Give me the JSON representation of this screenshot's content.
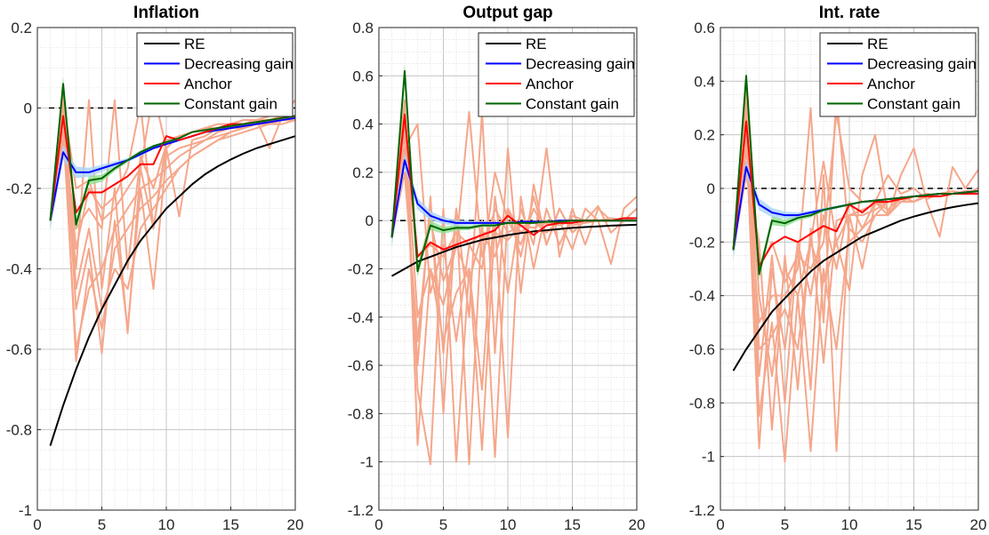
{
  "figure": {
    "colors": {
      "re": "#000000",
      "decreasing_gain": "#0000ff",
      "anchor": "#ff0000",
      "constant_gain": "#006400",
      "simulation_paths": "#f5a78b",
      "decreasing_gain_band": "#a9d4f5",
      "constant_gain_band": "#8fe08f",
      "zero_line": "#000000",
      "grid": "#cfcfcf"
    }
  },
  "chart_data": [
    {
      "type": "line",
      "title": "Inflation",
      "xlabel": "",
      "ylabel": "",
      "xlim": [
        0,
        20
      ],
      "ylim": [
        -1,
        0.2
      ],
      "xticks": [
        0,
        5,
        10,
        15,
        20
      ],
      "yticks": [
        0.2,
        0,
        -0.2,
        -0.4,
        -0.6,
        -0.8,
        -1
      ],
      "ytick_labels": [
        "0.2",
        "0",
        "-0.2",
        "-0.4",
        "-0.6",
        "-0.8",
        "-1"
      ],
      "grid": true,
      "minor_grid": true,
      "zero_line": true,
      "legend": {
        "position": "top-right",
        "entries": [
          "RE",
          "Decreasing gain",
          "Anchor",
          "Constant gain"
        ]
      },
      "x": [
        1,
        2,
        3,
        4,
        5,
        6,
        7,
        8,
        9,
        10,
        11,
        12,
        13,
        14,
        15,
        16,
        17,
        18,
        19,
        20
      ],
      "series": [
        {
          "name": "RE",
          "values": [
            -0.84,
            -0.74,
            -0.65,
            -0.57,
            -0.5,
            -0.44,
            -0.38,
            -0.33,
            -0.29,
            -0.25,
            -0.22,
            -0.19,
            -0.165,
            -0.145,
            -0.128,
            -0.113,
            -0.1,
            -0.09,
            -0.08,
            -0.07
          ]
        },
        {
          "name": "Decreasing gain",
          "values": [
            -0.28,
            -0.11,
            -0.16,
            -0.16,
            -0.15,
            -0.14,
            -0.13,
            -0.115,
            -0.1,
            -0.09,
            -0.08,
            -0.07,
            -0.06,
            -0.055,
            -0.05,
            -0.045,
            -0.04,
            -0.035,
            -0.03,
            -0.025
          ]
        },
        {
          "name": "Anchor",
          "values": [
            -0.28,
            -0.02,
            -0.26,
            -0.21,
            -0.21,
            -0.19,
            -0.17,
            -0.14,
            -0.14,
            -0.07,
            -0.08,
            -0.07,
            -0.06,
            -0.05,
            -0.04,
            -0.04,
            -0.035,
            -0.03,
            -0.025,
            -0.02
          ]
        },
        {
          "name": "Constant gain",
          "values": [
            -0.28,
            0.06,
            -0.29,
            -0.18,
            -0.175,
            -0.15,
            -0.13,
            -0.11,
            -0.095,
            -0.085,
            -0.075,
            -0.06,
            -0.055,
            -0.05,
            -0.045,
            -0.04,
            -0.035,
            -0.03,
            -0.025,
            -0.02
          ]
        }
      ],
      "simulation_paths": [
        [
          -0.28,
          -0.05,
          -0.6,
          -0.45,
          -0.4,
          -0.3,
          -0.25,
          -0.2,
          -0.18,
          -0.15,
          -0.12,
          -0.1,
          -0.08,
          -0.07,
          -0.06,
          -0.05,
          -0.04,
          -0.04,
          -0.03,
          -0.03
        ],
        [
          -0.28,
          -0.02,
          -0.63,
          -0.4,
          -0.55,
          -0.35,
          -0.3,
          -0.25,
          -0.22,
          -0.18,
          -0.15,
          -0.12,
          -0.1,
          -0.08,
          -0.07,
          -0.06,
          -0.05,
          -0.04,
          -0.04,
          -0.03
        ],
        [
          -0.28,
          0.0,
          -0.5,
          -0.35,
          -0.61,
          -0.28,
          -0.55,
          -0.2,
          -0.45,
          -0.12,
          -0.1,
          -0.09,
          -0.08,
          -0.06,
          -0.05,
          -0.05,
          -0.04,
          -0.03,
          -0.03,
          -0.02
        ],
        [
          -0.28,
          0.04,
          -0.45,
          -0.3,
          -0.5,
          -0.4,
          -0.45,
          -0.3,
          -0.25,
          -0.2,
          -0.15,
          -0.12,
          -0.1,
          -0.08,
          -0.06,
          -0.05,
          -0.04,
          -0.04,
          -0.03,
          -0.03
        ],
        [
          -0.28,
          -0.05,
          -0.4,
          0.02,
          -0.45,
          -0.2,
          -0.56,
          -0.15,
          -0.3,
          -0.1,
          -0.27,
          -0.08,
          -0.07,
          -0.05,
          -0.05,
          -0.04,
          -0.03,
          -0.03,
          -0.02,
          -0.02
        ],
        [
          -0.28,
          -0.08,
          -0.3,
          -0.25,
          -0.3,
          0.02,
          -0.4,
          -0.12,
          -0.2,
          -0.09,
          -0.08,
          -0.07,
          -0.06,
          -0.05,
          -0.04,
          -0.03,
          -0.03,
          -0.02,
          -0.02,
          -0.02
        ],
        [
          -0.28,
          -0.02,
          -0.35,
          -0.2,
          -0.25,
          -0.22,
          -0.15,
          0.01,
          -0.3,
          -0.08,
          -0.07,
          -0.06,
          -0.05,
          -0.05,
          -0.04,
          -0.04,
          -0.03,
          -0.1,
          -0.02,
          0.02
        ],
        [
          -0.28,
          0.02,
          -0.2,
          -0.18,
          -0.28,
          -0.25,
          -0.2,
          -0.15,
          0.04,
          -0.1,
          -0.07,
          -0.06,
          -0.05,
          -0.04,
          -0.04,
          -0.03,
          -0.03,
          -0.02,
          -0.02,
          -0.02
        ]
      ]
    },
    {
      "type": "line",
      "title": "Output gap",
      "xlabel": "",
      "ylabel": "",
      "xlim": [
        0,
        20
      ],
      "ylim": [
        -1.2,
        0.8
      ],
      "xticks": [
        0,
        5,
        10,
        15,
        20
      ],
      "yticks": [
        0.8,
        0.6,
        0.4,
        0.2,
        0,
        -0.2,
        -0.4,
        -0.6,
        -0.8,
        -1,
        -1.2
      ],
      "ytick_labels": [
        "0.8",
        "0.6",
        "0.4",
        "0.2",
        "0",
        "-0.2",
        "-0.4",
        "-0.6",
        "-0.8",
        "-1",
        "-1.2"
      ],
      "grid": true,
      "minor_grid": true,
      "zero_line": true,
      "legend": {
        "position": "top-right",
        "entries": [
          "RE",
          "Decreasing gain",
          "Anchor",
          "Constant gain"
        ]
      },
      "x": [
        1,
        2,
        3,
        4,
        5,
        6,
        7,
        8,
        9,
        10,
        11,
        12,
        13,
        14,
        15,
        16,
        17,
        18,
        19,
        20
      ],
      "series": [
        {
          "name": "RE",
          "values": [
            -0.23,
            -0.2,
            -0.17,
            -0.15,
            -0.13,
            -0.11,
            -0.095,
            -0.08,
            -0.07,
            -0.06,
            -0.052,
            -0.045,
            -0.04,
            -0.035,
            -0.03,
            -0.027,
            -0.024,
            -0.021,
            -0.019,
            -0.017
          ]
        },
        {
          "name": "Decreasing gain",
          "values": [
            -0.07,
            0.25,
            0.07,
            0.02,
            0.0,
            -0.01,
            -0.01,
            -0.01,
            -0.01,
            -0.01,
            -0.005,
            -0.005,
            -0.005,
            0.0,
            0.0,
            0.0,
            0.0,
            0.0,
            0.0,
            0.0
          ]
        },
        {
          "name": "Anchor",
          "values": [
            -0.07,
            0.44,
            -0.15,
            -0.09,
            -0.12,
            -0.1,
            -0.08,
            -0.06,
            -0.04,
            0.02,
            -0.02,
            -0.06,
            -0.02,
            -0.01,
            -0.01,
            0.0,
            0.0,
            0.0,
            0.01,
            0.01
          ]
        },
        {
          "name": "Constant gain",
          "values": [
            -0.07,
            0.62,
            -0.21,
            -0.02,
            -0.04,
            -0.03,
            -0.03,
            -0.02,
            -0.02,
            -0.01,
            -0.01,
            -0.01,
            -0.005,
            -0.005,
            0.0,
            0.0,
            0.0,
            0.0,
            0.0,
            0.0
          ]
        }
      ],
      "simulation_paths": [
        [
          -0.07,
          0.5,
          -0.93,
          -0.2,
          -0.35,
          -0.1,
          -0.25,
          -0.05,
          -0.15,
          0.05,
          -0.05,
          0.0,
          -0.05,
          0.0,
          -0.02,
          -0.01,
          0.0,
          0.01,
          0.0,
          0.0
        ],
        [
          -0.07,
          0.4,
          -0.7,
          -1.01,
          0.05,
          -1.0,
          -0.2,
          -0.95,
          0.0,
          -0.9,
          0.1,
          -0.2,
          0.05,
          -0.1,
          0.02,
          0.0,
          0.0,
          0.0,
          0.0,
          0.0
        ],
        [
          -0.07,
          0.3,
          -0.6,
          0.1,
          -0.8,
          0.05,
          -1.01,
          0.0,
          -0.98,
          0.05,
          -0.15,
          0.1,
          -0.1,
          0.05,
          -0.05,
          0.0,
          0.0,
          0.0,
          0.0,
          0.0
        ],
        [
          -0.07,
          0.2,
          -0.5,
          0.05,
          -0.55,
          0.05,
          -0.4,
          0.45,
          -0.55,
          0.3,
          -0.3,
          0.15,
          -0.1,
          0.05,
          -0.05,
          0.0,
          0.0,
          0.0,
          0.0,
          0.0
        ],
        [
          -0.07,
          0.4,
          -0.4,
          -0.2,
          -0.5,
          -0.3,
          -0.2,
          -0.7,
          0.1,
          -0.3,
          0.05,
          -0.1,
          0.3,
          -0.15,
          0.05,
          -0.1,
          0.05,
          0.0,
          0.0,
          0.0
        ],
        [
          -0.07,
          0.3,
          0.4,
          -0.3,
          -0.1,
          -0.5,
          -0.1,
          -0.2,
          0.2,
          0.0,
          -0.1,
          0.05,
          -0.05,
          0.0,
          -0.12,
          0.05,
          0.0,
          -0.18,
          0.05,
          0.1
        ],
        [
          -0.07,
          0.45,
          -0.2,
          0.0,
          -0.25,
          -0.1,
          0.45,
          -0.15,
          0.05,
          -0.05,
          -0.02,
          -0.03,
          0.0,
          -0.02,
          0.0,
          0.0,
          0.06,
          -0.05,
          0.0,
          0.05
        ],
        [
          -0.07,
          0.35,
          -0.15,
          -0.1,
          -0.15,
          -0.05,
          -0.1,
          -0.05,
          -0.05,
          -0.08,
          -0.02,
          -0.03,
          -0.01,
          -0.01,
          0.0,
          0.0,
          0.0,
          0.0,
          0.01,
          0.0
        ]
      ]
    },
    {
      "type": "line",
      "title": "Int. rate",
      "xlabel": "",
      "ylabel": "",
      "xlim": [
        0,
        20
      ],
      "ylim": [
        -1.2,
        0.6
      ],
      "xticks": [
        0,
        5,
        10,
        15,
        20
      ],
      "yticks": [
        0.6,
        0.4,
        0.2,
        0,
        -0.2,
        -0.4,
        -0.6,
        -0.8,
        -1,
        -1.2
      ],
      "ytick_labels": [
        "0.6",
        "0.4",
        "0.2",
        "0",
        "-0.2",
        "-0.4",
        "-0.6",
        "-0.8",
        "-1",
        "-1.2"
      ],
      "grid": true,
      "minor_grid": true,
      "zero_line": true,
      "legend": {
        "position": "top-right",
        "entries": [
          "RE",
          "Decreasing gain",
          "Anchor",
          "Constant gain"
        ]
      },
      "x": [
        1,
        2,
        3,
        4,
        5,
        6,
        7,
        8,
        9,
        10,
        11,
        12,
        13,
        14,
        15,
        16,
        17,
        18,
        19,
        20
      ],
      "series": [
        {
          "name": "RE",
          "values": [
            -0.68,
            -0.6,
            -0.53,
            -0.46,
            -0.41,
            -0.36,
            -0.31,
            -0.27,
            -0.24,
            -0.21,
            -0.18,
            -0.16,
            -0.14,
            -0.12,
            -0.105,
            -0.092,
            -0.08,
            -0.07,
            -0.062,
            -0.055
          ]
        },
        {
          "name": "Decreasing gain",
          "values": [
            -0.23,
            0.08,
            -0.06,
            -0.09,
            -0.1,
            -0.1,
            -0.09,
            -0.08,
            -0.07,
            -0.06,
            -0.05,
            -0.045,
            -0.04,
            -0.035,
            -0.03,
            -0.025,
            -0.02,
            -0.02,
            -0.015,
            -0.01
          ]
        },
        {
          "name": "Anchor",
          "values": [
            -0.23,
            0.25,
            -0.29,
            -0.21,
            -0.18,
            -0.2,
            -0.17,
            -0.14,
            -0.16,
            -0.06,
            -0.09,
            -0.05,
            -0.05,
            -0.04,
            -0.03,
            -0.03,
            -0.03,
            -0.02,
            -0.02,
            -0.02
          ]
        },
        {
          "name": "Constant gain",
          "values": [
            -0.23,
            0.42,
            -0.32,
            -0.12,
            -0.13,
            -0.11,
            -0.1,
            -0.08,
            -0.07,
            -0.06,
            -0.05,
            -0.045,
            -0.04,
            -0.035,
            -0.03,
            -0.025,
            -0.02,
            -0.02,
            -0.015,
            -0.01
          ]
        }
      ],
      "simulation_paths": [
        [
          -0.23,
          0.2,
          -0.97,
          -0.3,
          -0.6,
          -0.2,
          -0.4,
          -0.1,
          -0.3,
          -0.05,
          -0.15,
          -0.05,
          -0.08,
          -0.03,
          -0.05,
          -0.02,
          -0.03,
          -0.02,
          -0.02,
          -0.01
        ],
        [
          -0.23,
          0.3,
          -0.85,
          -0.5,
          -1.02,
          -0.4,
          -0.98,
          -0.3,
          -0.6,
          -0.15,
          -0.2,
          -0.1,
          -0.1,
          -0.05,
          -0.05,
          -0.03,
          -0.03,
          -0.02,
          -0.02,
          -0.01
        ],
        [
          -0.23,
          0.15,
          -0.7,
          -0.25,
          -0.8,
          -0.2,
          -0.75,
          0.05,
          -0.98,
          -0.1,
          -0.3,
          -0.05,
          -0.1,
          -0.03,
          -0.05,
          -0.02,
          -0.03,
          -0.02,
          -0.02,
          -0.01
        ],
        [
          -0.23,
          0.35,
          -0.6,
          -0.55,
          -0.45,
          -0.6,
          -0.2,
          -0.35,
          -0.2,
          -0.1,
          -0.1,
          -0.08,
          -0.05,
          -0.04,
          -0.03,
          -0.03,
          -0.02,
          -0.02,
          -0.02,
          -0.01
        ],
        [
          -0.23,
          0.1,
          -0.5,
          -0.4,
          -0.4,
          -0.3,
          0.3,
          -0.5,
          0.35,
          -0.2,
          -0.15,
          -0.1,
          -0.05,
          -0.05,
          -0.03,
          -0.03,
          -0.02,
          -0.02,
          -0.01,
          -0.01
        ],
        [
          -0.23,
          0.25,
          -0.4,
          -0.7,
          -0.3,
          -0.4,
          -0.2,
          0.1,
          -0.2,
          -0.38,
          0.05,
          0.2,
          -0.1,
          0.05,
          0.15,
          -0.05,
          -0.18,
          0.08,
          0.0,
          0.07
        ],
        [
          -0.23,
          0.4,
          -0.3,
          -0.2,
          -0.35,
          -0.25,
          -0.3,
          -0.2,
          0.28,
          0.0,
          -0.05,
          -0.05,
          0.05,
          -0.02,
          0.0,
          -0.04,
          -0.02,
          -0.01,
          -0.02,
          0.0
        ],
        [
          -0.23,
          0.05,
          -0.2,
          -0.9,
          -0.25,
          -0.75,
          -0.15,
          -0.65,
          -0.12,
          -0.1,
          -0.08,
          -0.06,
          -0.05,
          -0.04,
          -0.03,
          -0.03,
          -0.02,
          -0.02,
          -0.02,
          -0.01
        ]
      ]
    }
  ]
}
